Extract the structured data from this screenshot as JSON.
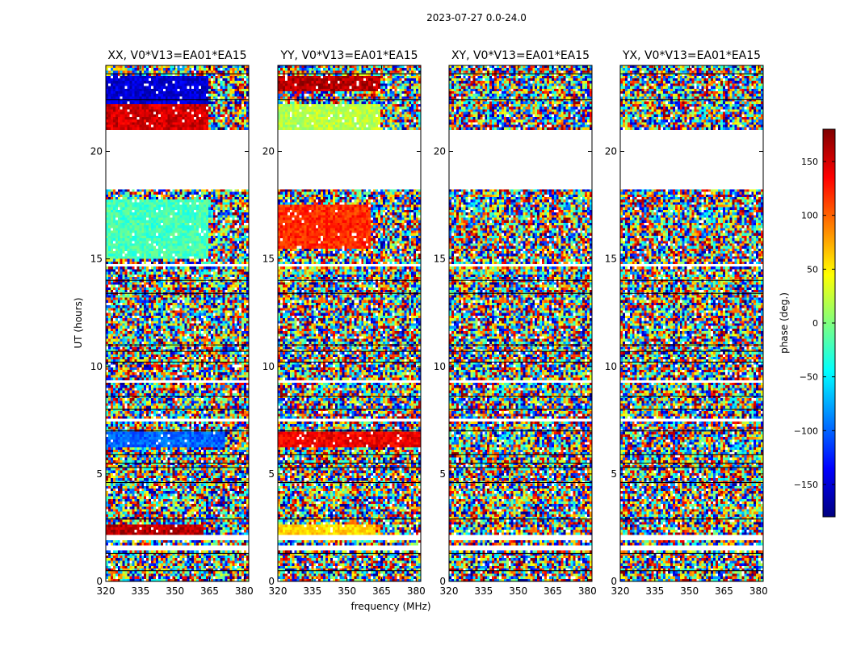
{
  "figure": {
    "suptitle": "2023-07-27 0.0-24.0",
    "xlabel": "frequency (MHz)",
    "ylabel": "UT (hours)"
  },
  "colorbar": {
    "label": "phase (deg.)",
    "range": [
      -180,
      180
    ],
    "ticks": [
      150,
      100,
      50,
      0,
      -50,
      -100,
      -150
    ],
    "tick_labels": [
      "150",
      "100",
      "50",
      "0",
      "−50",
      "−100",
      "−150"
    ],
    "colormap": "jet",
    "colors": [
      "#00007f",
      "#0000ff",
      "#007fff",
      "#00ffff",
      "#7fff7f",
      "#ffff00",
      "#ff7f00",
      "#ff0000",
      "#7f0000"
    ]
  },
  "chart_data": [
    {
      "type": "heatmap",
      "title": "XX, V0*V13=EA01*EA15",
      "x_range": [
        320,
        382
      ],
      "y_range": [
        0,
        24
      ],
      "x_ticks": [
        320,
        335,
        350,
        365,
        380
      ],
      "y_ticks": [
        0,
        5,
        10,
        15,
        20
      ],
      "value": "phase (deg.)",
      "coherent_bands": [
        {
          "ut": [
            22.2,
            23.5
          ],
          "phase": -150,
          "freq_edge": 364
        },
        {
          "ut": [
            21.0,
            22.2
          ],
          "phase": 150,
          "freq_edge": 364
        },
        {
          "ut": [
            15.0,
            17.8
          ],
          "phase": -20,
          "freq_edge": 364
        },
        {
          "ut": [
            6.2,
            7.0
          ],
          "phase": -100,
          "freq_edge": 372
        },
        {
          "ut": [
            2.2,
            2.6
          ],
          "phase": 160,
          "freq_edge": 362
        }
      ]
    },
    {
      "type": "heatmap",
      "title": "YY, V0*V13=EA01*EA15",
      "x_range": [
        320,
        382
      ],
      "y_range": [
        0,
        24
      ],
      "x_ticks": [
        320,
        335,
        350,
        365,
        380
      ],
      "y_ticks": [
        0,
        5,
        10,
        15,
        20
      ],
      "value": "phase (deg.)",
      "coherent_bands": [
        {
          "ut": [
            22.8,
            23.5
          ],
          "phase": 160,
          "freq_edge": 364
        },
        {
          "ut": [
            21.0,
            22.2
          ],
          "phase": 20,
          "freq_edge": 364
        },
        {
          "ut": [
            15.5,
            17.5
          ],
          "phase": 120,
          "freq_edge": 360
        },
        {
          "ut": [
            6.2,
            7.0
          ],
          "phase": 140,
          "freq_edge": 382
        },
        {
          "ut": [
            2.2,
            2.6
          ],
          "phase": 60,
          "freq_edge": 362
        }
      ]
    },
    {
      "type": "heatmap",
      "title": "XY, V0*V13=EA01*EA15",
      "x_range": [
        320,
        382
      ],
      "y_range": [
        0,
        24
      ],
      "x_ticks": [
        320,
        335,
        350,
        365,
        380
      ],
      "y_ticks": [
        0,
        5,
        10,
        15,
        20
      ],
      "value": "phase (deg.)",
      "coherent_bands": []
    },
    {
      "type": "heatmap",
      "title": "YX, V0*V13=EA01*EA15",
      "x_range": [
        320,
        382
      ],
      "y_range": [
        0,
        24
      ],
      "x_ticks": [
        320,
        335,
        350,
        365,
        380
      ],
      "y_ticks": [
        0,
        5,
        10,
        15,
        20
      ],
      "value": "phase (deg.)",
      "coherent_bands": []
    }
  ]
}
